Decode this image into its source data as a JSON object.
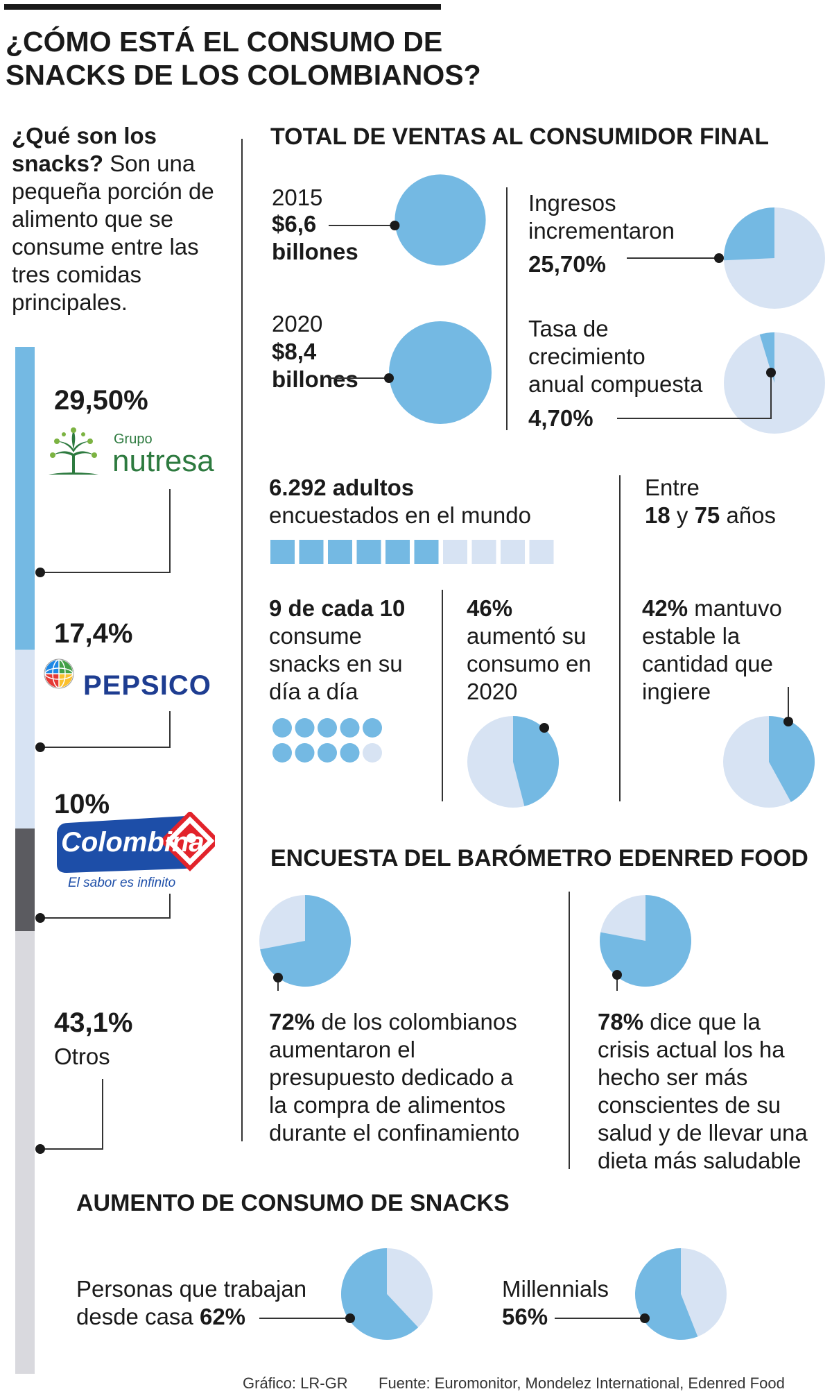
{
  "title_line1": "¿CÓMO ESTÁ EL CONSUMO DE",
  "title_line2": "SNACKS DE LOS COLOMBIANOS?",
  "intro": {
    "bold": "¿Qué son los snacks?",
    "text": " Son una pequeña porción de alimento que se consume entre las tres comidas principales."
  },
  "colors": {
    "blue": "#74b9e3",
    "light_blue": "#d7e3f3",
    "gray_bar": "#d9d9de",
    "dark_gray": "#5b5b60",
    "nutresa_green": "#2d7a3f",
    "pepsico_blue": "#1e3d91",
    "colombina_blue": "#1d4ea8",
    "colombina_red": "#e2232b"
  },
  "market_share": {
    "chart_data": {
      "type": "bar",
      "orientation": "vertical-stacked",
      "series": [
        {
          "name": "Grupo Nutresa",
          "label": "29,50%",
          "value": 29.5
        },
        {
          "name": "PepsiCo",
          "label": "17,4%",
          "value": 17.4
        },
        {
          "name": "Colombina",
          "label": "10%",
          "value": 10
        },
        {
          "name": "Otros",
          "label": "43,1%",
          "value": 43.1
        }
      ]
    },
    "nutresa_logo": {
      "small": "Grupo",
      "big": "nutresa"
    },
    "pepsico_logo": "PEPSICO",
    "colombina_logo": {
      "big": "Colombina",
      "tag": "El sabor es infinito"
    },
    "otros_label": "Otros"
  },
  "sales": {
    "heading": "TOTAL DE VENTAS AL CONSUMIDOR FINAL",
    "chart_data": {
      "type": "bubble",
      "series": [
        {
          "year": "2015",
          "value": 6.6,
          "value_label": "$6,6",
          "unit": "billones"
        },
        {
          "year": "2020",
          "value": 8.4,
          "value_label": "$8,4",
          "unit": "billones"
        }
      ]
    },
    "income": {
      "line1": "Ingresos",
      "line2": "incrementaron",
      "value_label": "25,70%",
      "value": 25.7
    },
    "cagr": {
      "line1": "Tasa de",
      "line2": "crecimiento",
      "line3": "anual compuesta",
      "value_label": "4,70%",
      "value": 4.7
    }
  },
  "survey": {
    "adults_bold": "6.292 adultos",
    "adults_text": "encuestados en el mundo",
    "squares_filled": 6,
    "squares_total": 10,
    "age_line1": "Entre",
    "age_from": "18",
    "age_mid": " y ",
    "age_to": "75",
    "age_end": " años",
    "nine_bold": "9 de cada 10",
    "nine_lines": [
      "consume",
      "snacks en su",
      "día a día"
    ],
    "dots_filled": 9,
    "dots_total": 10,
    "increased_bold": "46%",
    "increased_lines": [
      "aumentó su",
      "consumo en",
      "2020"
    ],
    "increased_value": 46,
    "stable_bold": "42%",
    "stable_after": " mantuvo",
    "stable_lines": [
      "estable la",
      "cantidad que",
      "ingiere"
    ],
    "stable_value": 42
  },
  "edenred": {
    "heading": "ENCUESTA DEL BARÓMETRO EDENRED FOOD",
    "left": {
      "bold": "72%",
      "after": " de los colombianos",
      "lines": [
        "aumentaron el",
        "presupuesto dedicado a",
        "la compra de alimentos",
        "durante el confinamiento"
      ],
      "value": 72
    },
    "right": {
      "bold": "78%",
      "after": " dice que la",
      "lines": [
        "crisis actual los ha",
        "hecho ser más",
        "conscientes de su",
        "salud y de llevar una",
        "dieta más saludable"
      ],
      "value": 78
    }
  },
  "increase": {
    "heading": "AUMENTO DE CONSUMO DE SNACKS",
    "home": {
      "line1": "Personas que trabajan",
      "line2": "desde casa ",
      "bold": "62%",
      "value": 62
    },
    "millennials": {
      "line1": "Millennials",
      "bold": "56%",
      "value": 56
    }
  },
  "footer": {
    "credit": "Gráfico: LR-GR",
    "source": "Fuente: Euromonitor, Mondelez International, Edenred Food"
  }
}
